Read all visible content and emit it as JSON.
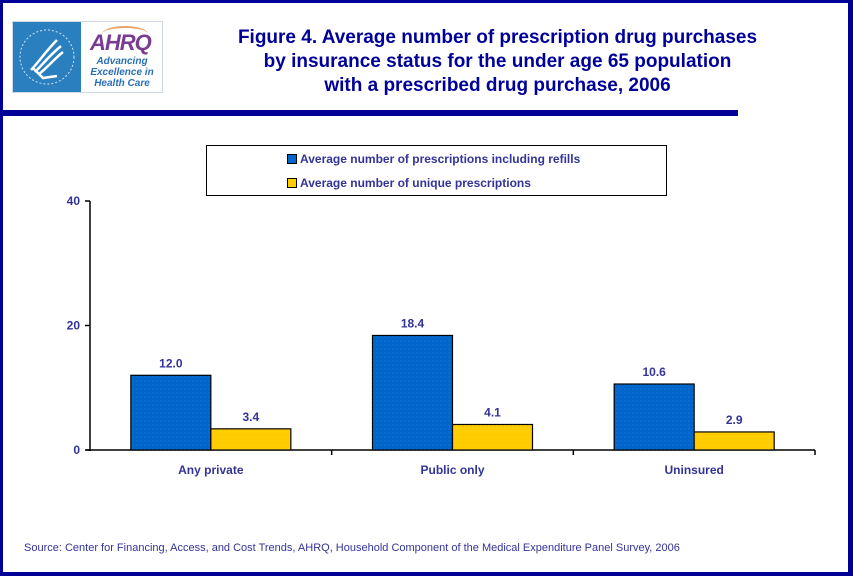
{
  "logo": {
    "hhs_alt": "Department of Health & Human Services USA",
    "ahrq_wordmark": "AHRQ",
    "ahrq_tagline": [
      "Advancing",
      "Excellence in",
      "Health Care"
    ]
  },
  "title_lines": [
    "Figure 4. Average number of prescription drug purchases",
    "by insurance status for the under age 65 population",
    "with a prescribed drug purchase, 2006"
  ],
  "source": "Source: Center for Financing, Access, and Cost Trends, AHRQ, Household Component of the Medical Expenditure Panel Survey, 2006",
  "colors": {
    "frame": "#000099",
    "series_refills": "#0066cc",
    "series_unique": "#ffcc00",
    "text": "#333399"
  },
  "chart_data": {
    "type": "bar",
    "title": "Figure 4. Average number of prescription drug purchases by insurance status for the under age 65 population with a prescribed drug purchase, 2006",
    "categories": [
      "Any private",
      "Public only",
      "Uninsured"
    ],
    "series": [
      {
        "name": "Average number of prescriptions including refills",
        "values": [
          12.0,
          18.4,
          10.6
        ],
        "labels": [
          "12.0",
          "18.4",
          "10.6"
        ],
        "color": "#0066cc"
      },
      {
        "name": "Average number of unique prescriptions",
        "values": [
          3.4,
          4.1,
          2.9
        ],
        "labels": [
          "3.4",
          "4.1",
          "2.9"
        ],
        "color": "#ffcc00"
      }
    ],
    "xlabel": "",
    "ylabel": "",
    "ylim": [
      0,
      40
    ],
    "yticks": [
      0,
      20,
      40
    ],
    "grid": false,
    "legend_position": "top"
  }
}
